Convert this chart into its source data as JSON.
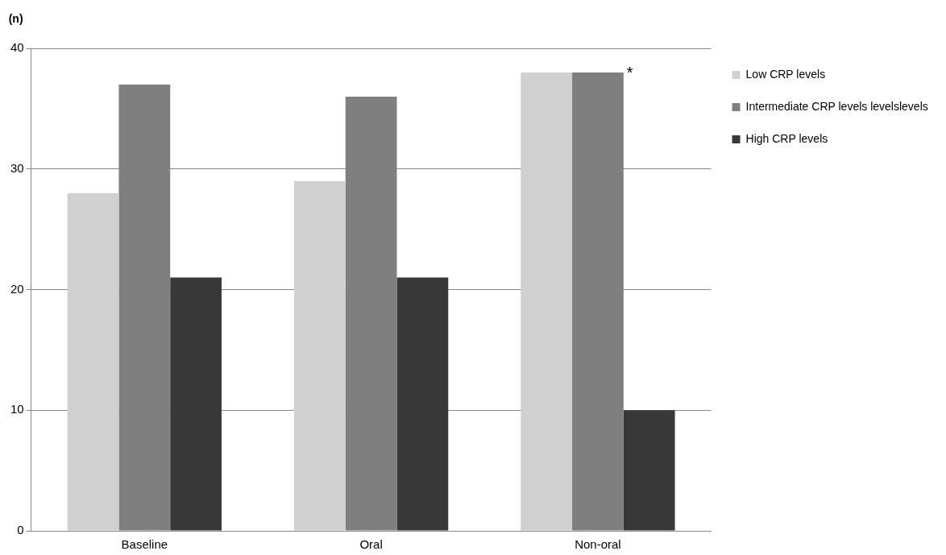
{
  "chart_data": {
    "type": "bar",
    "ylabel": "(n)",
    "categories": [
      "Baseline",
      "Oral",
      "Non-oral"
    ],
    "series": [
      {
        "name": "Low CRP levels",
        "color": "#d0d0d0",
        "values": [
          28,
          29,
          38
        ]
      },
      {
        "name": "Intermediate CRP levels levelslevels",
        "color": "#7f7f7f",
        "values": [
          37,
          36,
          38
        ]
      },
      {
        "name": "High CRP levels",
        "color": "#383838",
        "values": [
          21,
          21,
          10
        ]
      }
    ],
    "ylim": [
      0,
      40
    ],
    "yticks": [
      0,
      10,
      20,
      30,
      40
    ],
    "grid": "y",
    "legend": "top right",
    "annotations": [
      {
        "text": "*",
        "x": "Non-oral",
        "y": 38
      }
    ]
  }
}
